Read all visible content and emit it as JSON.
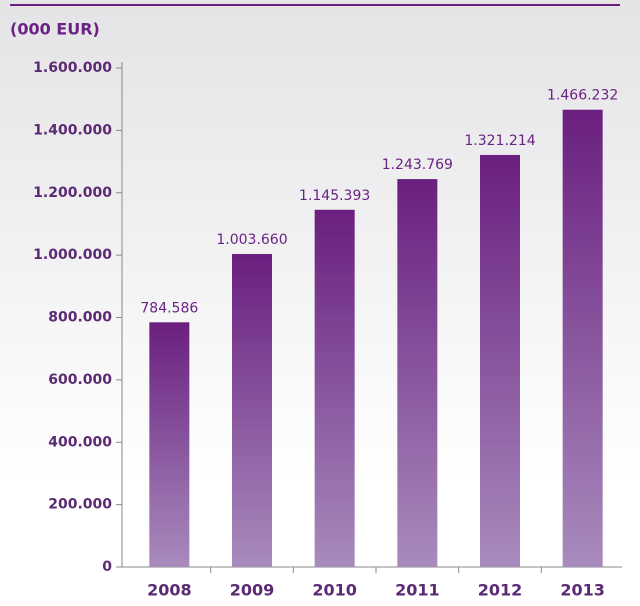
{
  "chart_data": {
    "type": "bar",
    "title": "(000 EUR)",
    "categories": [
      "2008",
      "2009",
      "2010",
      "2011",
      "2012",
      "2013"
    ],
    "values": [
      784586,
      1003660,
      1145393,
      1243769,
      1321214,
      1466232
    ],
    "value_labels": [
      "784.586",
      "1.003.660",
      "1.145.393",
      "1.243.769",
      "1.321.214",
      "1.466.232"
    ],
    "color": "#6a1f7f",
    "ylim": [
      0,
      1600000
    ],
    "yticks": [
      0,
      {
        "value": 200000,
        "label": "200.000"
      },
      {
        "value": 400000,
        "label": "400.000"
      },
      {
        "value": 600000,
        "label": "600.000"
      },
      {
        "value": 800000,
        "label": "800.000"
      },
      {
        "value": 1000000,
        "label": "1.000.000"
      },
      {
        "value": 1200000,
        "label": "1.200.000"
      },
      {
        "value": 1400000,
        "label": "1.400.000"
      },
      {
        "value": 1600000,
        "label": "1.600.000"
      }
    ],
    "grid": false
  }
}
